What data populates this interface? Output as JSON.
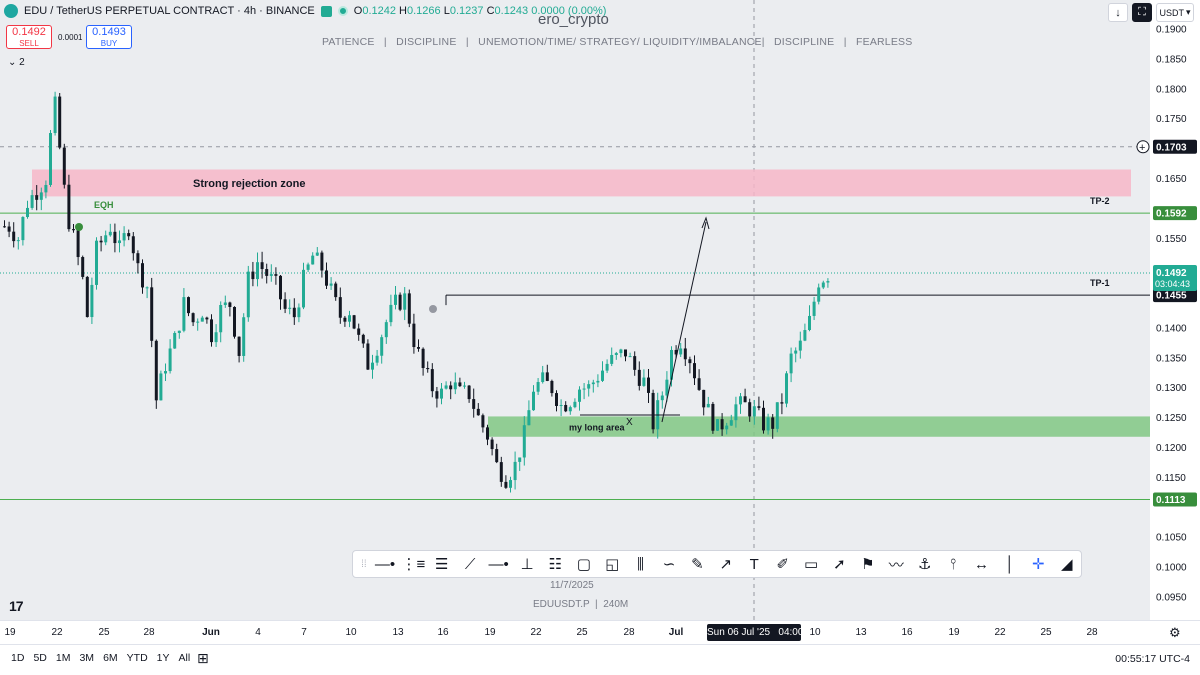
{
  "header": {
    "symbol": "EDU / TetherUS PERPETUAL CONTRACT · 4h · BINANCE",
    "ohlc": {
      "o_label": "O",
      "o": "0.1242",
      "h_label": "H",
      "h": "0.1266",
      "l_label": "L",
      "l": "0.1237",
      "c_label": "C",
      "c": "0.1243",
      "change": "0.0000 (0.00%)"
    },
    "sell_price": "0.1492",
    "sell_label": "SELL",
    "buy_price": "0.1493",
    "buy_label": "BUY",
    "spread": "0.0001",
    "indicators_toggle": "2"
  },
  "watermark": "ero_crypto",
  "motto": "PATIENCE   |   DISCIPLINE   |   UNEMOTION/TIME/ STRATEGY/ LIQUIDITY/IMBALANCE|   DISCIPLINE   |   FEARLESS",
  "chart_data": {
    "type": "candlestick",
    "timeframe": "4h",
    "y_range": [
      0.0935,
      0.1925
    ],
    "y_ticks": [
      "0.1900",
      "0.1850",
      "0.1800",
      "0.1750",
      "0.1650",
      "0.1550",
      "0.1400",
      "0.1350",
      "0.1300",
      "0.1250",
      "0.1200",
      "0.1150",
      "0.1050",
      "0.1000",
      "0.0950"
    ],
    "x_ticks": [
      "19",
      "22",
      "25",
      "28",
      "Jun",
      "4",
      "7",
      "10",
      "13",
      "16",
      "19",
      "22",
      "25",
      "28",
      "Jul",
      "10",
      "13",
      "16",
      "19",
      "22",
      "25",
      "28"
    ],
    "price_path": [
      [
        0,
        0.157
      ],
      [
        2,
        0.157
      ],
      [
        4,
        0.155
      ],
      [
        6,
        0.161
      ],
      [
        8,
        0.163
      ],
      [
        10,
        0.165
      ],
      [
        11,
        0.172
      ],
      [
        12,
        0.177
      ],
      [
        13,
        0.17
      ],
      [
        14,
        0.163
      ],
      [
        15,
        0.158
      ],
      [
        16,
        0.155
      ],
      [
        18,
        0.148
      ],
      [
        19,
        0.142
      ],
      [
        21,
        0.153
      ],
      [
        24,
        0.157
      ],
      [
        26,
        0.153
      ],
      [
        28,
        0.157
      ],
      [
        30,
        0.15
      ],
      [
        32,
        0.147
      ],
      [
        33,
        0.138
      ],
      [
        34,
        0.128
      ],
      [
        36,
        0.134
      ],
      [
        38,
        0.138
      ],
      [
        40,
        0.144
      ],
      [
        42,
        0.141
      ],
      [
        44,
        0.143
      ],
      [
        46,
        0.139
      ],
      [
        48,
        0.143
      ],
      [
        50,
        0.144
      ],
      [
        52,
        0.136
      ],
      [
        54,
        0.148
      ],
      [
        56,
        0.151
      ],
      [
        58,
        0.149
      ],
      [
        60,
        0.147
      ],
      [
        62,
        0.143
      ],
      [
        64,
        0.142
      ],
      [
        66,
        0.148
      ],
      [
        68,
        0.152
      ],
      [
        70,
        0.15
      ],
      [
        72,
        0.146
      ],
      [
        74,
        0.142
      ],
      [
        76,
        0.143
      ],
      [
        78,
        0.138
      ],
      [
        80,
        0.134
      ],
      [
        82,
        0.137
      ],
      [
        84,
        0.141
      ],
      [
        86,
        0.144
      ],
      [
        88,
        0.145
      ],
      [
        90,
        0.138
      ],
      [
        92,
        0.133
      ],
      [
        94,
        0.13
      ],
      [
        96,
        0.129
      ],
      [
        98,
        0.131
      ],
      [
        100,
        0.129
      ],
      [
        102,
        0.129
      ],
      [
        104,
        0.125
      ],
      [
        106,
        0.122
      ],
      [
        108,
        0.117
      ],
      [
        110,
        0.115
      ],
      [
        112,
        0.117
      ],
      [
        114,
        0.122
      ],
      [
        116,
        0.13
      ],
      [
        118,
        0.131
      ],
      [
        120,
        0.13
      ],
      [
        122,
        0.127
      ],
      [
        124,
        0.128
      ],
      [
        126,
        0.13
      ],
      [
        128,
        0.13
      ],
      [
        130,
        0.132
      ],
      [
        132,
        0.134
      ],
      [
        134,
        0.135
      ],
      [
        136,
        0.136
      ],
      [
        138,
        0.133
      ],
      [
        140,
        0.131
      ],
      [
        142,
        0.124
      ],
      [
        144,
        0.129
      ],
      [
        146,
        0.136
      ],
      [
        148,
        0.138
      ],
      [
        150,
        0.135
      ],
      [
        152,
        0.13
      ],
      [
        154,
        0.126
      ],
      [
        156,
        0.123
      ],
      [
        158,
        0.125
      ],
      [
        160,
        0.127
      ],
      [
        162,
        0.127
      ],
      [
        164,
        0.126
      ],
      [
        166,
        0.124
      ],
      [
        168,
        0.124
      ],
      [
        170,
        0.128
      ],
      [
        172,
        0.135
      ],
      [
        174,
        0.137
      ],
      [
        176,
        0.141
      ],
      [
        178,
        0.148
      ],
      [
        180,
        0.149
      ]
    ],
    "current_price": "0.1492",
    "countdown": "03:04:43",
    "price_labels": [
      {
        "text": "0.1703",
        "value": 0.1703,
        "style": "crosshair"
      },
      {
        "text": "0.1592",
        "value": 0.1592,
        "style": "green"
      },
      {
        "text": "0.1455",
        "value": 0.1455,
        "style": "dark"
      },
      {
        "text": "0.1113",
        "value": 0.1113,
        "style": "green"
      }
    ],
    "levels": [
      {
        "value": 0.1592,
        "label": "TP-2",
        "color": "#4caf50"
      },
      {
        "value": 0.1455,
        "label": "TP-1",
        "color": "#131722"
      },
      {
        "value": 0.1113,
        "label": "",
        "color": "#4caf50"
      }
    ],
    "zones": [
      {
        "label": "Strong rejection zone",
        "top": 0.1665,
        "bottom": 0.162,
        "color": "#f7b6c8"
      },
      {
        "label": "my long area",
        "top": 0.1252,
        "bottom": 0.1218,
        "color": "#81c784"
      }
    ],
    "annotations": {
      "eqh": "EQH",
      "x_mark": "X"
    }
  },
  "toolbar": {
    "tools": [
      "horizontal-ray",
      "horizontal-lines",
      "parallel-lines",
      "angled-lines",
      "trend-line",
      "vertical-line",
      "fib-levels",
      "rectangle",
      "callout",
      "candles",
      "curve",
      "brush",
      "arrow-line",
      "text",
      "pen",
      "comment",
      "arrow-path",
      "flag",
      "path",
      "anchor",
      "pitchfork",
      "range",
      "ruler",
      "crosshair",
      "magic"
    ]
  },
  "date_caption": "11/7/2025",
  "symbol_caption": "EDUUSDT.P  |  240M",
  "price_scale": {
    "currency": "USDT"
  },
  "time_scale": {
    "crosshair_label": "Sun 06 Jul '25   04:00"
  },
  "bottom_bar": {
    "ranges": [
      "1D",
      "5D",
      "1M",
      "3M",
      "6M",
      "YTD",
      "1Y",
      "All"
    ],
    "clock": "00:55:17 UTC-4"
  },
  "colors": {
    "up": "#22ab94",
    "down": "#131722",
    "background": "#ebedf0"
  }
}
